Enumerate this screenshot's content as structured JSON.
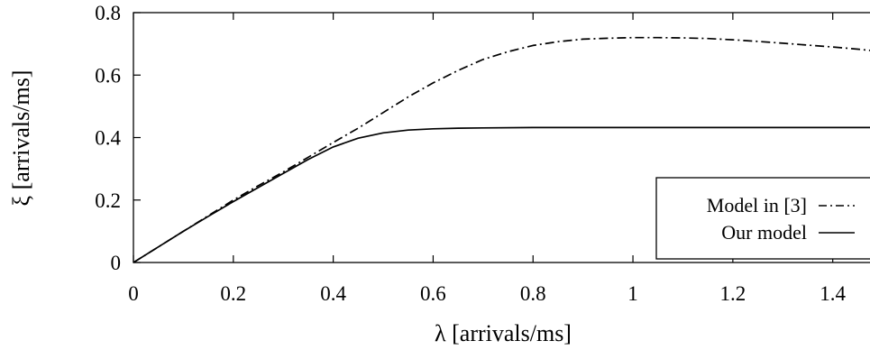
{
  "chart_data": {
    "type": "line",
    "xlabel": "λ [arrivals/ms]",
    "ylabel": "ξ [arrivals/ms]",
    "xlim": [
      0,
      1.48
    ],
    "ylim": [
      0,
      0.8
    ],
    "xticks": [
      "0",
      "0.2",
      "0.4",
      "0.6",
      "0.8",
      "1",
      "1.2",
      "1.4"
    ],
    "yticks": [
      "0",
      "0.2",
      "0.4",
      "0.6",
      "0.8"
    ],
    "grid": false,
    "legend_position": "bottom-right",
    "series": [
      {
        "name": "Model in [3]",
        "style": "dash-dot",
        "color": "#000000",
        "x": [
          0,
          0.05,
          0.1,
          0.15,
          0.2,
          0.25,
          0.3,
          0.35,
          0.4,
          0.45,
          0.5,
          0.55,
          0.6,
          0.65,
          0.7,
          0.75,
          0.8,
          0.85,
          0.9,
          0.95,
          1.0,
          1.05,
          1.1,
          1.15,
          1.2,
          1.25,
          1.3,
          1.35,
          1.4,
          1.45,
          1.48
        ],
        "y": [
          0,
          0.05,
          0.1,
          0.15,
          0.2,
          0.246,
          0.29,
          0.337,
          0.384,
          0.43,
          0.48,
          0.53,
          0.575,
          0.615,
          0.65,
          0.675,
          0.695,
          0.707,
          0.715,
          0.718,
          0.72,
          0.72,
          0.719,
          0.717,
          0.713,
          0.708,
          0.702,
          0.696,
          0.69,
          0.683,
          0.678
        ]
      },
      {
        "name": "Our model",
        "style": "solid",
        "color": "#000000",
        "x": [
          0,
          0.05,
          0.1,
          0.15,
          0.2,
          0.25,
          0.3,
          0.35,
          0.4,
          0.45,
          0.5,
          0.55,
          0.6,
          0.65,
          0.7,
          0.8,
          0.9,
          1.0,
          1.1,
          1.2,
          1.3,
          1.4,
          1.48
        ],
        "y": [
          0,
          0.05,
          0.1,
          0.148,
          0.195,
          0.24,
          0.285,
          0.33,
          0.37,
          0.398,
          0.415,
          0.424,
          0.428,
          0.43,
          0.431,
          0.432,
          0.432,
          0.432,
          0.432,
          0.432,
          0.432,
          0.432,
          0.432
        ]
      }
    ]
  }
}
